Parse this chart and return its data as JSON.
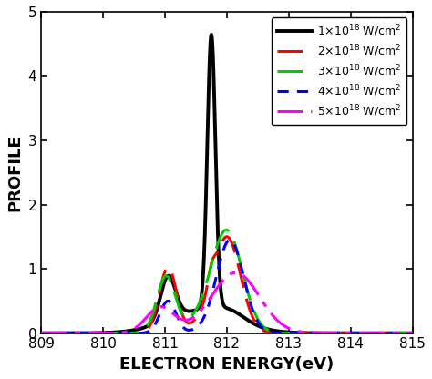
{
  "title": "",
  "xlabel": "ELECTRON ENERGY(eV)",
  "ylabel": "PROFILE",
  "xlim": [
    809,
    815
  ],
  "ylim": [
    0,
    5
  ],
  "xticks": [
    809,
    810,
    811,
    812,
    813,
    814,
    815
  ],
  "yticks": [
    0,
    1,
    2,
    3,
    4,
    5
  ],
  "background_color": "#ffffff",
  "line_colors": [
    "#000000",
    "#ff0000",
    "#00cc00",
    "#0000ff",
    "#ff00ff"
  ],
  "line_widths": [
    2.8,
    2.2,
    2.2,
    2.2,
    2.2
  ],
  "figsize": [
    4.74,
    4.16
  ],
  "dpi": 100
}
